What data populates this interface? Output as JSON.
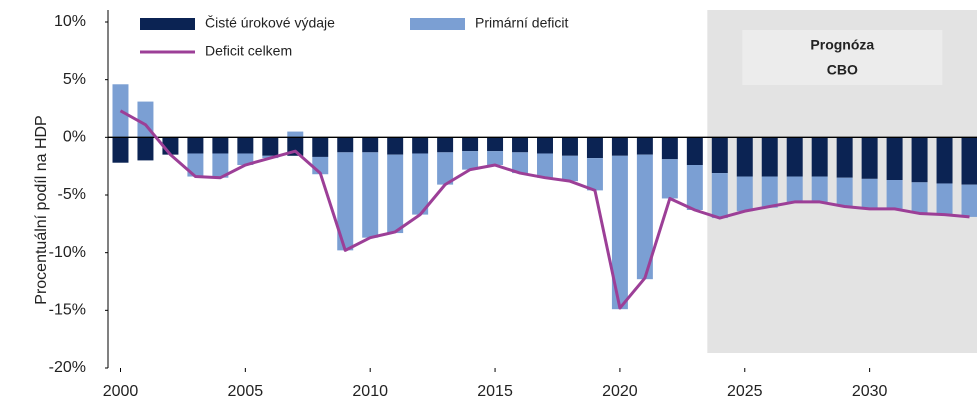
{
  "chart_data": {
    "type": "stacked-bar-line",
    "y_axis_label": "Procentuální podíl na HDP",
    "x": [
      2000,
      2001,
      2002,
      2003,
      2004,
      2005,
      2006,
      2007,
      2008,
      2009,
      2010,
      2011,
      2012,
      2013,
      2014,
      2015,
      2016,
      2017,
      2018,
      2019,
      2020,
      2021,
      2022,
      2023,
      2024,
      2025,
      2026,
      2027,
      2028,
      2029,
      2030,
      2031,
      2032,
      2033,
      2034
    ],
    "series": [
      {
        "name": "Čisté úrokové výdaje",
        "kind": "bar",
        "color": "#0b2353",
        "values": [
          -2.2,
          -2.0,
          -1.5,
          -1.4,
          -1.4,
          -1.4,
          -1.6,
          -1.6,
          -1.7,
          -1.3,
          -1.3,
          -1.5,
          -1.4,
          -1.3,
          -1.2,
          -1.2,
          -1.3,
          -1.4,
          -1.6,
          -1.8,
          -1.6,
          -1.5,
          -1.9,
          -2.4,
          -3.1,
          -3.4,
          -3.4,
          -3.4,
          -3.4,
          -3.5,
          -3.6,
          -3.7,
          -3.9,
          -4.0,
          -4.1
        ]
      },
      {
        "name": "Primární deficit",
        "kind": "bar",
        "color": "#7b9fd3",
        "values": [
          4.6,
          3.1,
          0,
          -2.0,
          -2.1,
          -1.0,
          -0.2,
          0.5,
          -1.5,
          -8.5,
          -7.4,
          -6.8,
          -5.3,
          -2.8,
          -1.6,
          -1.2,
          -1.8,
          -2.1,
          -2.2,
          -2.8,
          -13.3,
          -10.8,
          -3.4,
          -3.9,
          -3.9,
          -3.0,
          -2.7,
          -2.2,
          -2.2,
          -2.5,
          -2.6,
          -2.5,
          -2.7,
          -2.7,
          -2.8
        ]
      },
      {
        "name": "Deficit celkem",
        "kind": "line",
        "color": "#9c3f97",
        "values": [
          2.3,
          1.1,
          -1.5,
          -3.4,
          -3.5,
          -2.4,
          -1.8,
          -1.2,
          -3.1,
          -9.8,
          -8.7,
          -8.2,
          -6.7,
          -4.1,
          -2.8,
          -2.4,
          -3.1,
          -3.5,
          -3.8,
          -4.6,
          -14.8,
          -12.2,
          -5.3,
          -6.3,
          -7.0,
          -6.4,
          -6.0,
          -5.6,
          -5.6,
          -6.0,
          -6.2,
          -6.2,
          -6.6,
          -6.7,
          -6.9
        ]
      }
    ],
    "xlim": [
      1999.5,
      2034.3
    ],
    "xticks": [
      2000,
      2005,
      2010,
      2015,
      2020,
      2025,
      2030
    ],
    "ylim": [
      -20,
      10
    ],
    "yticks": [
      {
        "value": -20,
        "label": "-20%"
      },
      {
        "value": -15,
        "label": "-15%"
      },
      {
        "value": -10,
        "label": "-10%"
      },
      {
        "value": -5,
        "label": "-5%"
      },
      {
        "value": 0,
        "label": "0%"
      },
      {
        "value": 5,
        "label": "5%"
      },
      {
        "value": 10,
        "label": "10%"
      }
    ],
    "shaded_region": {
      "from": 2023.5,
      "to": 2034.3,
      "color": "#e3e3e3",
      "label": [
        "Prognóza",
        "CBO"
      ]
    }
  }
}
